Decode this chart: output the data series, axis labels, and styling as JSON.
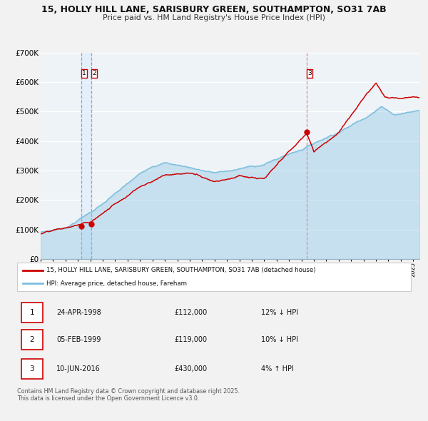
{
  "title_line1": "15, HOLLY HILL LANE, SARISBURY GREEN, SOUTHAMPTON, SO31 7AB",
  "title_line2": "Price paid vs. HM Land Registry's House Price Index (HPI)",
  "hpi_label": "HPI: Average price, detached house, Fareham",
  "property_label": "15, HOLLY HILL LANE, SARISBURY GREEN, SOUTHAMPTON, SO31 7AB (detached house)",
  "ylim": [
    0,
    700000
  ],
  "yticks": [
    0,
    100000,
    200000,
    300000,
    400000,
    500000,
    600000,
    700000
  ],
  "ytick_labels": [
    "£0",
    "£100K",
    "£200K",
    "£300K",
    "£400K",
    "£500K",
    "£600K",
    "£700K"
  ],
  "hpi_color": "#7fbfdf",
  "property_color": "#cc0000",
  "vline_color": "#dd8888",
  "shade_color": "#ddeeff",
  "bg_color": "#eef3f8",
  "fig_bg": "#f2f2f2",
  "transactions": [
    {
      "num": 1,
      "date": "24-APR-1998",
      "price": 112000,
      "hpi_diff": "12% ↓ HPI",
      "year": 1998.3
    },
    {
      "num": 2,
      "date": "05-FEB-1999",
      "price": 119000,
      "hpi_diff": "10% ↓ HPI",
      "year": 1999.1
    },
    {
      "num": 3,
      "date": "10-JUN-2016",
      "price": 430000,
      "hpi_diff": "4% ↑ HPI",
      "year": 2016.45
    }
  ],
  "footer": "Contains HM Land Registry data © Crown copyright and database right 2025.\nThis data is licensed under the Open Government Licence v3.0.",
  "xmin": 1995.0,
  "xmax": 2025.5
}
